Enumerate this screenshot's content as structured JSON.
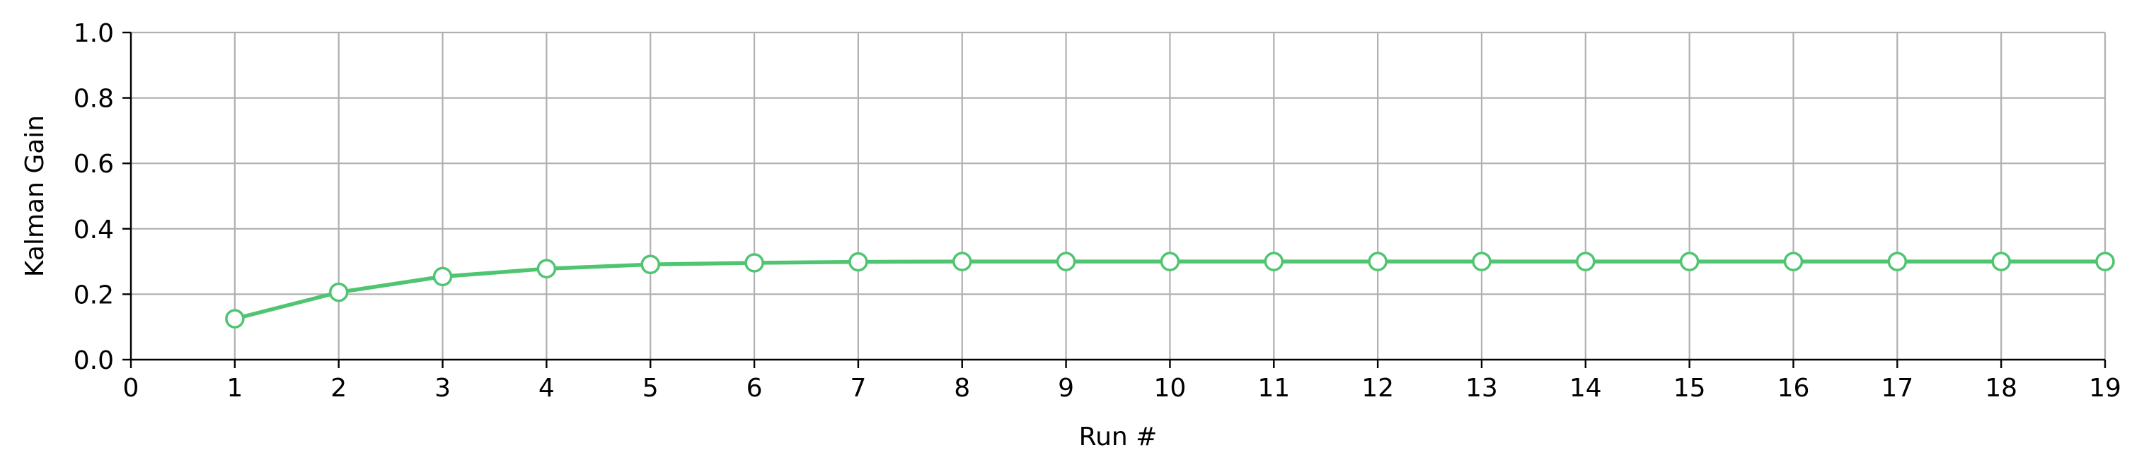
{
  "chart_data": {
    "type": "line",
    "title": "",
    "xlabel": "Run #",
    "ylabel": "Kalman Gain",
    "xlim": [
      0,
      19
    ],
    "ylim": [
      0,
      1.0
    ],
    "xticks": [
      0,
      1,
      2,
      3,
      4,
      5,
      6,
      7,
      8,
      9,
      10,
      11,
      12,
      13,
      14,
      15,
      16,
      17,
      18,
      19
    ],
    "xtick_labels": [
      "0",
      "1",
      "2",
      "3",
      "4",
      "5",
      "6",
      "7",
      "8",
      "9",
      "10",
      "11",
      "12",
      "13",
      "14",
      "15",
      "16",
      "17",
      "18",
      "19"
    ],
    "yticks": [
      0.0,
      0.2,
      0.4,
      0.6,
      0.8,
      1.0
    ],
    "ytick_labels": [
      "0.0",
      "0.2",
      "0.4",
      "0.6",
      "0.8",
      "1.0"
    ],
    "grid": true,
    "series": [
      {
        "color": "#4fc571",
        "marker": "circle-open",
        "x": [
          1,
          2,
          3,
          4,
          5,
          6,
          7,
          8,
          9,
          10,
          11,
          12,
          13,
          14,
          15,
          16,
          17,
          18,
          19
        ],
        "y": [
          0.125,
          0.206,
          0.254,
          0.278,
          0.291,
          0.296,
          0.299,
          0.3,
          0.3,
          0.3,
          0.3,
          0.3,
          0.3,
          0.3,
          0.3,
          0.3,
          0.3,
          0.3,
          0.3
        ]
      }
    ]
  }
}
